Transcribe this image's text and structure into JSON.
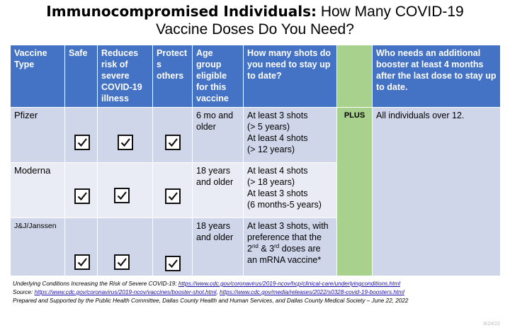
{
  "title": {
    "part1": "Immunocompromised Individuals:",
    "part2": " How Many COVID-19",
    "line2": "Vaccine Doses Do You Need?"
  },
  "table": {
    "headers": {
      "vaccine_type": "Vaccine Type",
      "safe": "Safe",
      "reduces_risk": "Reduces risk of severe COVID-19 illness",
      "protects_others": "Protect s others",
      "age_group": "Age group eligible for this vaccine",
      "shots": "How many shots do you need to stay up to date?",
      "booster": "Who needs an additional booster at least 4 months after the last dose to stay up to date."
    },
    "plus": "PLUS",
    "booster_text": "All individuals over 12.",
    "rows": [
      {
        "vaccine": "Pfizer",
        "age_line1": "6 mo  and",
        "age_line2": "older",
        "shots": [
          "At least 3 shots",
          "(> 5 years)",
          "At least 4 shots",
          "(> 12 years)"
        ],
        "safe": true,
        "reduces": true,
        "protects": true
      },
      {
        "vaccine": "Moderna",
        "age_line1": "18 years",
        "age_line2": "and older",
        "shots": [
          "At least 4 shots",
          "(> 18 years)",
          "At least 3 shots",
          "(6 months-5 years)"
        ],
        "safe": true,
        "reduces": true,
        "protects": true
      },
      {
        "vaccine": "J&J/Janssen",
        "age_line1": "18 years",
        "age_line2": "and older",
        "shots_line1": "At least 3 shots, with",
        "shots_line2": "preference that the",
        "shots_line3_a": "2",
        "shots_line3_sup1": "nd",
        "shots_line3_b": " & 3",
        "shots_line3_sup2": "rd",
        "shots_line3_c": " doses are",
        "shots_line4": "an mRNA vaccine*",
        "safe": true,
        "reduces": true,
        "protects": true
      }
    ]
  },
  "footer": {
    "line1_text": "Underlying Conditions Increasing the Risk of Severe COVID-19: ",
    "line1_link": "https://www.cdc.gov/coronavirus/2019-ncov/hcp/clinical-care/underlyingconditions.html",
    "line2_text": "Source: ",
    "line2_link1": "https://www.cdc.gov/coronavirus/2019-ncov/vaccines/booster-shot.html",
    "line2_sep": ", ",
    "line2_link2": "https://www.cdc.gov/media/releases/2022/s0328-covid-19-boosters.html",
    "line3_text": "Prepared and Supported by the Public Health Committee, Dallas County Health and Human Services, and Dallas County Medical Society – June 22, 2022"
  },
  "stamp": "6/24/22"
}
